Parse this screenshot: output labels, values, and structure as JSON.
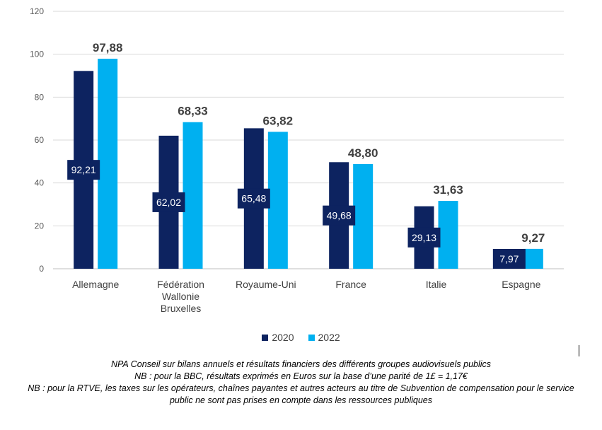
{
  "colors": {
    "series_2020": "#0d2360",
    "series_2022": "#00b0f0",
    "gridline": "#d9d9d9",
    "axis": "#bfbfbf",
    "label_box": "#0d2360"
  },
  "legend": {
    "items": [
      {
        "label": "2020"
      },
      {
        "label": "2022"
      }
    ]
  },
  "notes": {
    "line1": "NPA Conseil sur bilans annuels et résultats financiers des différents groupes audiovisuels publics",
    "line2": "NB : pour la BBC, résultats exprimés en Euros sur la base d’une parité de 1£ = 1,17€",
    "line3": "NB : pour la RTVE, les taxes sur les opérateurs, chaînes payantes et autres acteurs au titre de Subvention de compensation pour le service",
    "line4": "public ne sont pas prises en compte dans les ressources publiques"
  },
  "chart_data": {
    "type": "bar",
    "categories": [
      [
        "Allemagne"
      ],
      [
        "Fédération",
        "Wallonie",
        "Bruxelles"
      ],
      [
        "Royaume-Uni"
      ],
      [
        "France"
      ],
      [
        "Italie"
      ],
      [
        "Espagne"
      ]
    ],
    "series": [
      {
        "name": "2020",
        "values": [
          92.21,
          62.02,
          65.48,
          49.68,
          29.13,
          7.97
        ],
        "labels": [
          "92,21",
          "62,02",
          "65,48",
          "49,68",
          "29,13",
          "7,97"
        ]
      },
      {
        "name": "2022",
        "values": [
          97.88,
          68.33,
          63.82,
          48.8,
          31.63,
          9.27
        ],
        "labels": [
          "97,88",
          "68,33",
          "63,82",
          "48,80",
          "31,63",
          "9,27"
        ]
      }
    ],
    "ylim": [
      0,
      120
    ],
    "yticks": [
      0,
      20,
      40,
      60,
      80,
      100,
      120
    ],
    "grid": true,
    "legend_position": "bottom"
  }
}
